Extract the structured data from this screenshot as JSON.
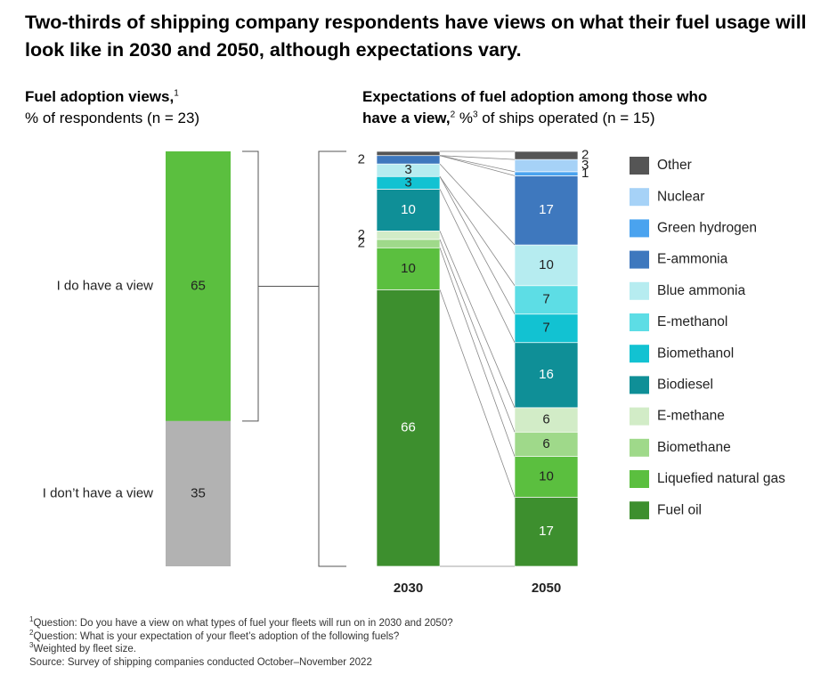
{
  "title": "Two-thirds of shipping company respondents have views on what their fuel usage will look like in 2030 and 2050, although expectations vary.",
  "left_panel": {
    "subtitle_line1": "Fuel adoption views,",
    "subtitle_sup": "1",
    "subtitle_line2": "% of respondents (n = 23)"
  },
  "right_panel": {
    "subtitle_line1": "Expectations of fuel adoption among those who",
    "subtitle_bold": "have a view,",
    "subtitle_sup1": "2",
    "subtitle_pct": " %",
    "subtitle_sup2": "3",
    "subtitle_rest": " of ships operated (n = 15)"
  },
  "chart_data": [
    {
      "type": "bar",
      "title": "Fuel adoption views, % of respondents (n = 23)",
      "categories": [
        "I do have a view",
        "I don’t have a view"
      ],
      "values": [
        65,
        35
      ],
      "colors": [
        "#5bbf3f",
        "#b2b2b2"
      ]
    },
    {
      "type": "bar",
      "stacked": true,
      "title": "Expectations of fuel adoption among those who have a view, % of ships operated (n = 15)",
      "categories": [
        "2030",
        "2050"
      ],
      "legend_position": "right",
      "series": [
        {
          "name": "Fuel oil",
          "color": "#3d8f2e",
          "values": [
            66,
            17
          ]
        },
        {
          "name": "Liquefied natural gas",
          "color": "#5bbf3f",
          "values": [
            10,
            10
          ]
        },
        {
          "name": "Biomethane",
          "color": "#9fd98a",
          "values": [
            2,
            6
          ]
        },
        {
          "name": "E-methane",
          "color": "#d2ecc7",
          "values": [
            2,
            6
          ]
        },
        {
          "name": "Biodiesel",
          "color": "#0f8f97",
          "values": [
            10,
            16
          ]
        },
        {
          "name": "Biomethanol",
          "color": "#12c2d2",
          "values": [
            3,
            7
          ]
        },
        {
          "name": "E-methanol",
          "color": "#5ddde5",
          "values": [
            0,
            7
          ]
        },
        {
          "name": "Blue ammonia",
          "color": "#b6ecf0",
          "values": [
            3,
            10
          ]
        },
        {
          "name": "E-ammonia",
          "color": "#3e78be",
          "values": [
            2,
            17
          ]
        },
        {
          "name": "Green hydrogen",
          "color": "#4aa3ef",
          "values": [
            0,
            1
          ]
        },
        {
          "name": "Nuclear",
          "color": "#a6d2f7",
          "values": [
            0,
            3
          ]
        },
        {
          "name": "Other",
          "color": "#555555",
          "values": [
            1,
            2
          ]
        }
      ],
      "labels_2030": [
        "66",
        "10",
        "2",
        "2",
        "10",
        "3",
        "",
        "3",
        "2",
        "",
        "",
        ""
      ],
      "labels_2050": [
        "17",
        "10",
        "6",
        "6",
        "16",
        "7",
        "7",
        "10",
        "17",
        "1",
        "3",
        "2"
      ]
    }
  ],
  "footnotes": {
    "n1_sup": "1",
    "n1": "Question: Do you have a view on what types of fuel your fleets will run on in 2030 and 2050?",
    "n2_sup": "2",
    "n2": "Question: What is your expectation of your fleet’s adoption of the following fuels?",
    "n3_sup": "3",
    "n3": "Weighted by fleet size.",
    "source": " Source: Survey of shipping companies conducted October–November 2022"
  }
}
